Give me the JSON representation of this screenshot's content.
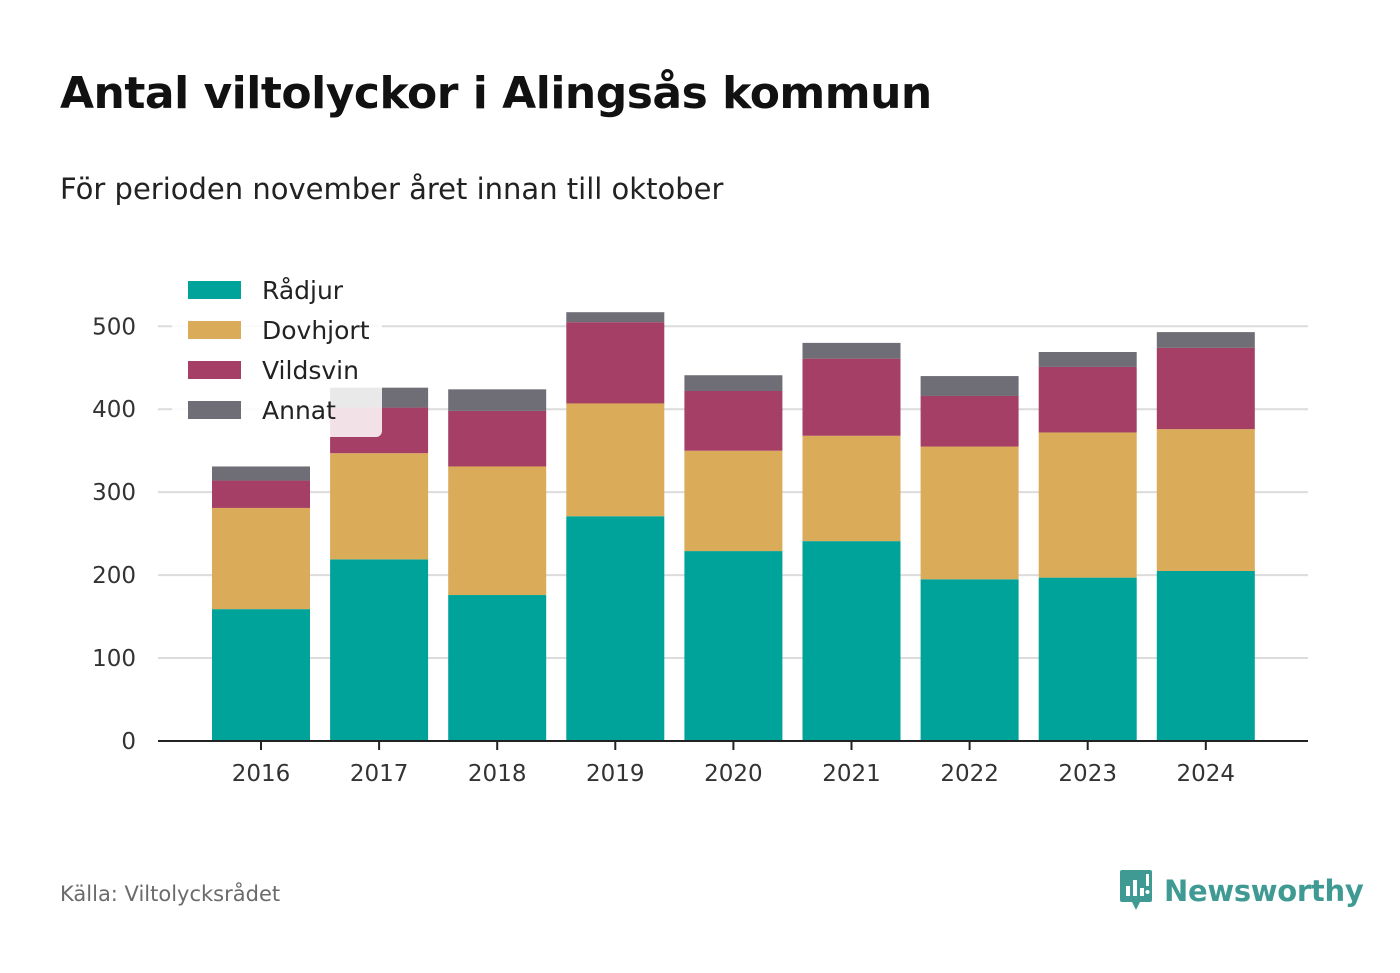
{
  "title": "Antal viltolyckor i Alingsås kommun",
  "subtitle": "För perioden november året innan till oktober",
  "source": "Källa: Viltolycksrådet",
  "brand": {
    "name": "Newsworthy",
    "icon": "newsworthy-logo-icon",
    "color": "#3f9a93"
  },
  "chart_data": {
    "type": "bar",
    "stacked": true,
    "categories": [
      "2016",
      "2017",
      "2018",
      "2019",
      "2020",
      "2021",
      "2022",
      "2023",
      "2024"
    ],
    "series": [
      {
        "name": "Rådjur",
        "color": "#00a39a",
        "values": [
          159,
          219,
          176,
          271,
          229,
          241,
          195,
          197,
          205
        ]
      },
      {
        "name": "Dovhjort",
        "color": "#daab58",
        "values": [
          122,
          128,
          155,
          136,
          121,
          127,
          160,
          175,
          171
        ]
      },
      {
        "name": "Vildsvin",
        "color": "#a53f65",
        "values": [
          33,
          55,
          67,
          98,
          72,
          93,
          61,
          79,
          98
        ]
      },
      {
        "name": "Annat",
        "color": "#6f6d75",
        "values": [
          17,
          24,
          26,
          12,
          19,
          19,
          24,
          18,
          19
        ]
      }
    ],
    "ylim": [
      0,
      540
    ],
    "yticks": [
      0,
      100,
      200,
      300,
      400,
      500
    ],
    "grid": true,
    "legend": "top-left",
    "xlabel": "",
    "ylabel": ""
  }
}
